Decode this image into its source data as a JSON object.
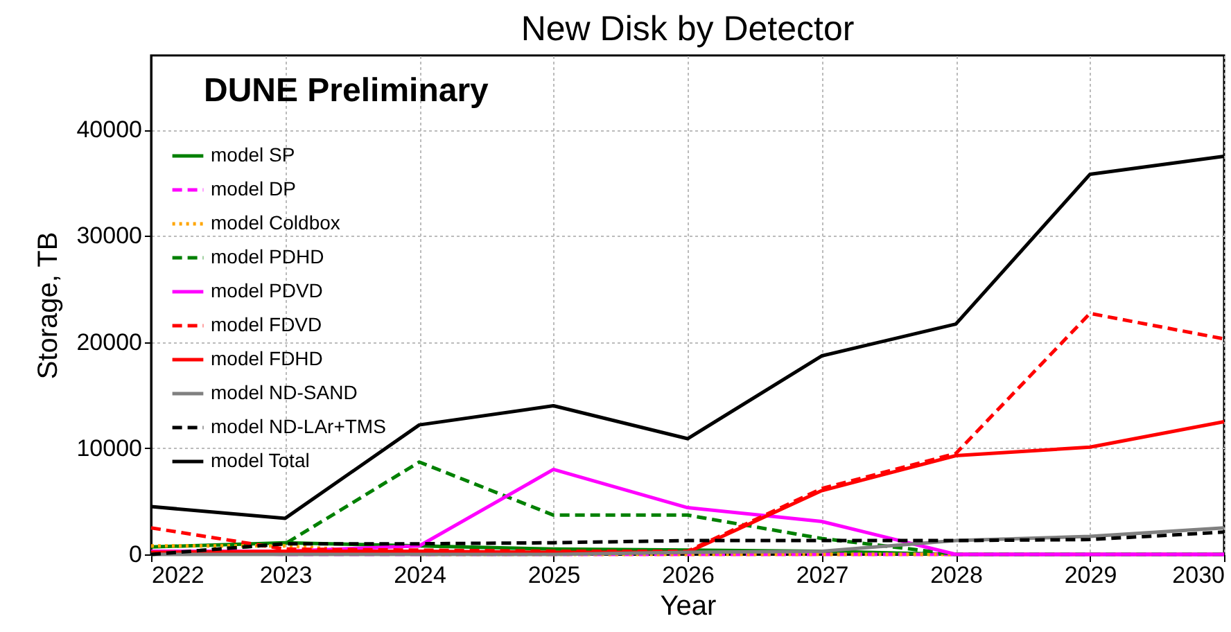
{
  "chart_data": {
    "type": "line",
    "title": "New Disk by Detector",
    "xlabel": "Year",
    "ylabel": "Storage, TB",
    "x": [
      2022,
      2023,
      2024,
      2025,
      2026,
      2027,
      2028,
      2029,
      2030
    ],
    "xlim": [
      2022,
      2030
    ],
    "xticks": [
      2022,
      2023,
      2024,
      2025,
      2026,
      2027,
      2028,
      2029,
      2030
    ],
    "ylim": [
      0,
      47000
    ],
    "yticks": [
      0,
      10000,
      20000,
      30000,
      40000
    ],
    "grid": true,
    "legend": "left",
    "marker": "none",
    "annotations": [
      "DUNE Preliminary"
    ],
    "series": [
      {
        "name": "model SP",
        "color": "#008000",
        "line_style": "solid",
        "values": [
          700,
          1100,
          800,
          500,
          400,
          300,
          0,
          0,
          0
        ]
      },
      {
        "name": "model DP",
        "color": "#ff00ff",
        "line_style": "dashed",
        "values": [
          300,
          0,
          0,
          0,
          0,
          0,
          0,
          0,
          0
        ]
      },
      {
        "name": "model Coldbox",
        "color": "#ffa500",
        "line_style": "dotted",
        "values": [
          800,
          800,
          0,
          0,
          0,
          0,
          0,
          0,
          0
        ]
      },
      {
        "name": "model PDHD",
        "color": "#008000",
        "line_style": "dashed",
        "values": [
          0,
          1000,
          8700,
          3700,
          3700,
          1500,
          0,
          0,
          0
        ]
      },
      {
        "name": "model PDVD",
        "color": "#ff00ff",
        "line_style": "solid",
        "values": [
          300,
          300,
          800,
          8000,
          4400,
          3100,
          0,
          0,
          0
        ]
      },
      {
        "name": "model FDVD",
        "color": "#ff0000",
        "line_style": "dashed",
        "values": [
          2500,
          500,
          400,
          300,
          300,
          6200,
          9500,
          22700,
          20300
        ]
      },
      {
        "name": "model FDHD",
        "color": "#ff0000",
        "line_style": "solid",
        "values": [
          200,
          300,
          300,
          200,
          200,
          6000,
          9300,
          10100,
          12500
        ]
      },
      {
        "name": "model ND-SAND",
        "color": "#808080",
        "line_style": "solid",
        "values": [
          0,
          0,
          0,
          0,
          200,
          300,
          1300,
          1700,
          2500
        ]
      },
      {
        "name": "model ND-LAr+TMS",
        "color": "#000000",
        "line_style": "dashed",
        "values": [
          0,
          1000,
          1000,
          1100,
          1300,
          1300,
          1300,
          1400,
          2100
        ]
      },
      {
        "name": "model Total",
        "color": "#000000",
        "line_style": "solid",
        "values": [
          4500,
          3400,
          12200,
          14000,
          10900,
          18700,
          21700,
          35800,
          37500
        ]
      }
    ]
  }
}
